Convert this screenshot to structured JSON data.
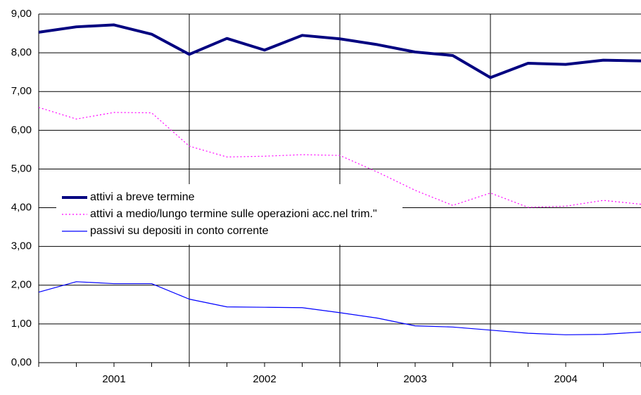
{
  "chart_data": {
    "type": "line",
    "x": [
      0,
      1,
      2,
      3,
      4,
      5,
      6,
      7,
      8,
      9,
      10,
      11,
      12,
      13,
      14,
      15,
      16
    ],
    "xlim": [
      0,
      16
    ],
    "xticks": [
      {
        "value": 2,
        "label": "2001"
      },
      {
        "value": 6,
        "label": "2002"
      },
      {
        "value": 10,
        "label": "2003"
      },
      {
        "value": 14,
        "label": "2004"
      }
    ],
    "xgrid": [
      4,
      8,
      12
    ],
    "ylim": [
      0,
      9
    ],
    "yticks": [
      {
        "value": 0,
        "label": "0,00"
      },
      {
        "value": 1,
        "label": "1,00"
      },
      {
        "value": 2,
        "label": "2,00"
      },
      {
        "value": 3,
        "label": "3,00"
      },
      {
        "value": 4,
        "label": "4,00"
      },
      {
        "value": 5,
        "label": "5,00"
      },
      {
        "value": 6,
        "label": "6,00"
      },
      {
        "value": 7,
        "label": "7,00"
      },
      {
        "value": 8,
        "label": "8,00"
      },
      {
        "value": 9,
        "label": "9,00"
      }
    ],
    "grid": true,
    "series": [
      {
        "name": "attivi a breve termine",
        "color": "#000080",
        "values": [
          8.53,
          8.67,
          8.72,
          8.48,
          7.96,
          8.37,
          8.07,
          8.45,
          8.36,
          8.21,
          8.02,
          7.93,
          7.36,
          7.73,
          7.7,
          7.81,
          7.79
        ]
      },
      {
        "name": "attivi a medio/lungo termine sulle operazioni acc.nel trim.\"",
        "color": "#ff00ff",
        "values": [
          6.59,
          6.29,
          6.46,
          6.45,
          5.59,
          5.31,
          5.33,
          5.37,
          5.35,
          4.92,
          4.45,
          4.06,
          4.38,
          4.01,
          4.04,
          4.19,
          4.09
        ]
      },
      {
        "name": "passivi su depositi in conto corrente",
        "color": "#0000ff",
        "values": [
          1.82,
          2.09,
          2.04,
          2.04,
          1.64,
          1.44,
          1.43,
          1.42,
          1.29,
          1.15,
          0.95,
          0.92,
          0.84,
          0.76,
          0.72,
          0.73,
          0.79
        ]
      }
    ]
  }
}
